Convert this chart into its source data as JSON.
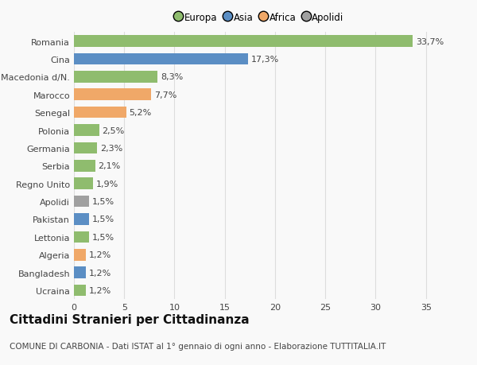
{
  "categories": [
    "Ucraina",
    "Bangladesh",
    "Algeria",
    "Lettonia",
    "Pakistan",
    "Apolidi",
    "Regno Unito",
    "Serbia",
    "Germania",
    "Polonia",
    "Senegal",
    "Marocco",
    "Macedonia d/N.",
    "Cina",
    "Romania"
  ],
  "values": [
    1.2,
    1.2,
    1.2,
    1.5,
    1.5,
    1.5,
    1.9,
    2.1,
    2.3,
    2.5,
    5.2,
    7.7,
    8.3,
    17.3,
    33.7
  ],
  "labels": [
    "1,2%",
    "1,2%",
    "1,2%",
    "1,5%",
    "1,5%",
    "1,5%",
    "1,9%",
    "2,1%",
    "2,3%",
    "2,5%",
    "5,2%",
    "7,7%",
    "8,3%",
    "17,3%",
    "33,7%"
  ],
  "colors": [
    "#8fbc6e",
    "#5b8ec4",
    "#f0a868",
    "#8fbc6e",
    "#5b8ec4",
    "#a0a0a0",
    "#8fbc6e",
    "#8fbc6e",
    "#8fbc6e",
    "#8fbc6e",
    "#f0a868",
    "#f0a868",
    "#8fbc6e",
    "#5b8ec4",
    "#8fbc6e"
  ],
  "legend_labels": [
    "Europa",
    "Asia",
    "Africa",
    "Apolidi"
  ],
  "legend_colors": [
    "#8fbc6e",
    "#5b8ec4",
    "#f0a868",
    "#a0a0a0"
  ],
  "title": "Cittadini Stranieri per Cittadinanza",
  "subtitle": "COMUNE DI CARBONIA - Dati ISTAT al 1° gennaio di ogni anno - Elaborazione TUTTITALIA.IT",
  "xlim": [
    0,
    37
  ],
  "xticks": [
    0,
    5,
    10,
    15,
    20,
    25,
    30,
    35
  ],
  "background_color": "#f9f9f9",
  "bar_height": 0.65,
  "grid_color": "#dddddd",
  "text_color": "#444444",
  "label_fontsize": 8,
  "tick_fontsize": 8,
  "title_fontsize": 11,
  "subtitle_fontsize": 7.5
}
